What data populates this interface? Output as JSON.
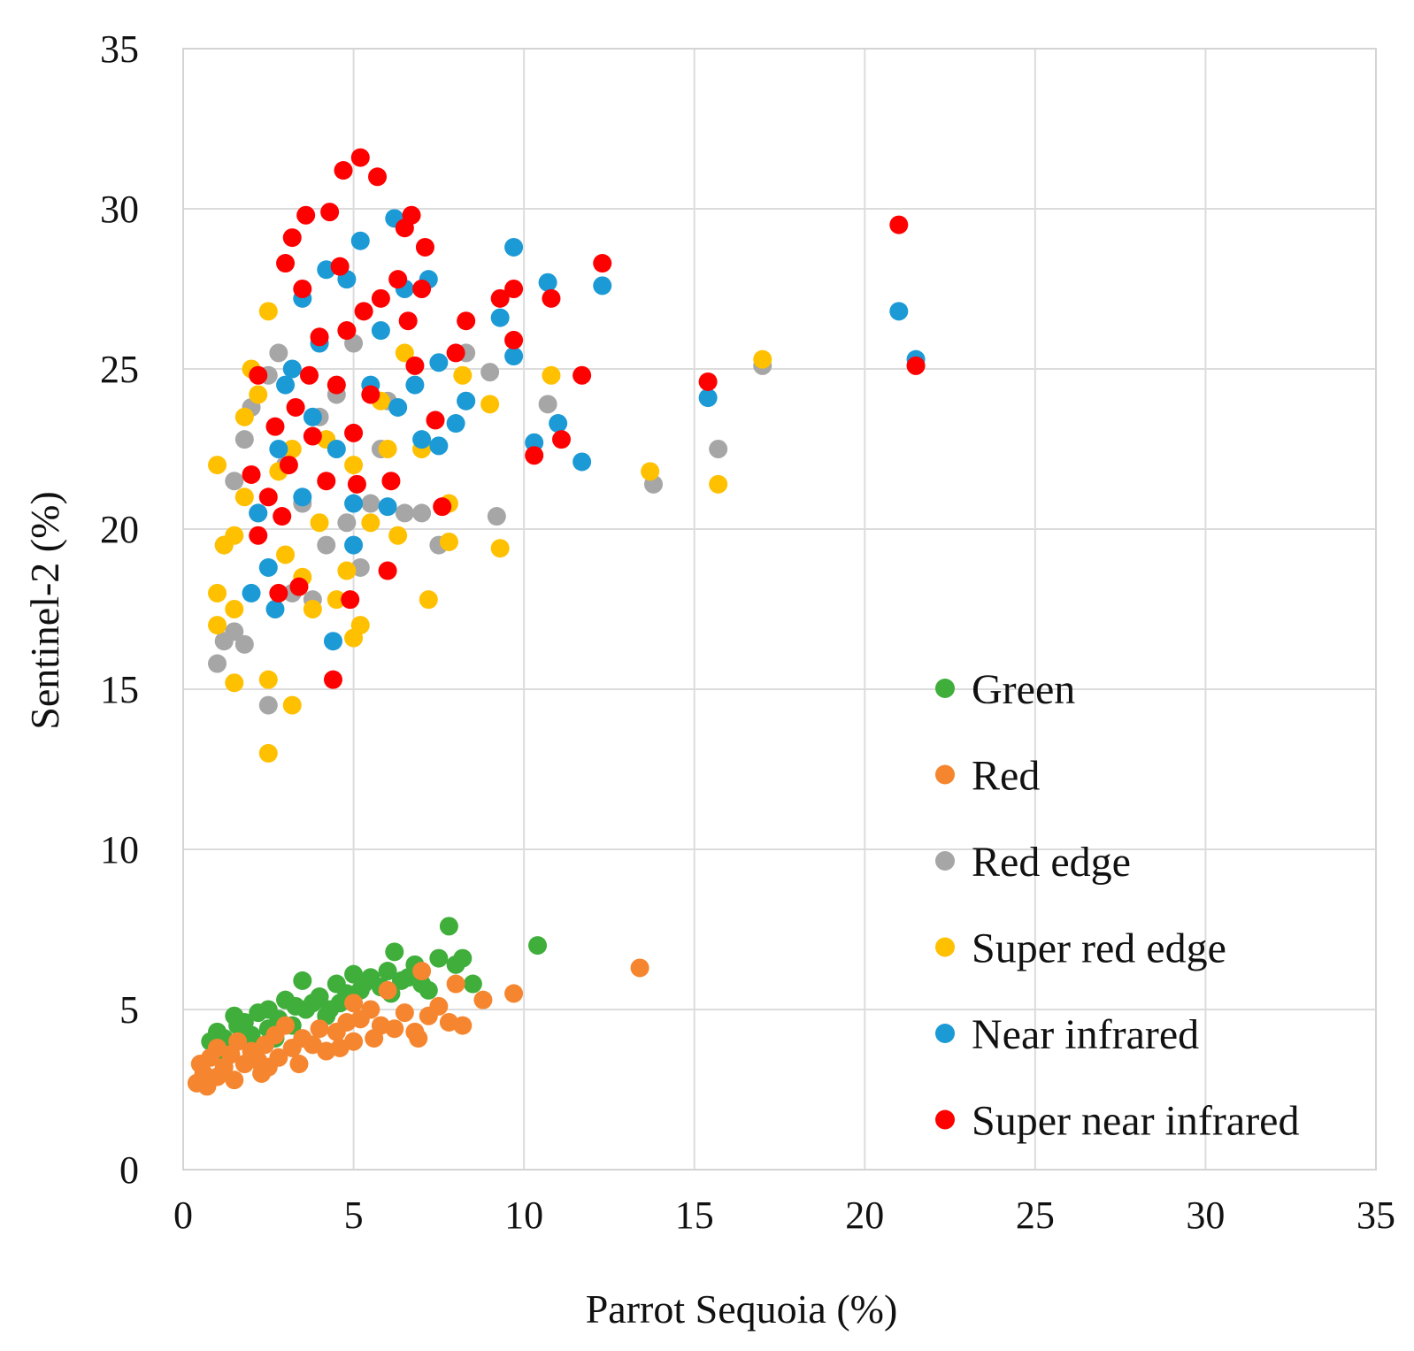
{
  "chart_data": {
    "type": "scatter",
    "title": "",
    "xlabel": "Parrot Sequoia (%)",
    "ylabel": "Sentinel-2 (%)",
    "xlim": [
      0,
      35
    ],
    "ylim": [
      0,
      35
    ],
    "xticks": [
      0,
      5,
      10,
      15,
      20,
      25,
      30,
      35
    ],
    "yticks": [
      0,
      5,
      10,
      15,
      20,
      25,
      30,
      35
    ],
    "grid": true,
    "legend_position": "lower-right",
    "series": [
      {
        "name": "Green",
        "color": "#3fae3a",
        "points": [
          [
            0.8,
            4.0
          ],
          [
            1.0,
            4.3
          ],
          [
            1.2,
            4.1
          ],
          [
            1.5,
            4.8
          ],
          [
            1.8,
            4.6
          ],
          [
            2.0,
            4.2
          ],
          [
            2.2,
            4.9
          ],
          [
            2.5,
            5.0
          ],
          [
            2.5,
            4.4
          ],
          [
            2.8,
            4.7
          ],
          [
            3.0,
            5.3
          ],
          [
            3.2,
            4.5
          ],
          [
            3.5,
            5.9
          ],
          [
            3.6,
            5.0
          ],
          [
            3.8,
            5.2
          ],
          [
            4.0,
            5.4
          ],
          [
            4.2,
            4.8
          ],
          [
            4.5,
            5.8
          ],
          [
            4.6,
            5.2
          ],
          [
            4.8,
            5.5
          ],
          [
            5.0,
            6.1
          ],
          [
            5.2,
            5.6
          ],
          [
            5.5,
            6.0
          ],
          [
            5.8,
            5.7
          ],
          [
            6.0,
            6.2
          ],
          [
            6.2,
            6.8
          ],
          [
            6.4,
            5.9
          ],
          [
            6.6,
            6.0
          ],
          [
            6.8,
            6.4
          ],
          [
            7.0,
            5.8
          ],
          [
            7.2,
            5.6
          ],
          [
            7.5,
            6.6
          ],
          [
            7.8,
            7.6
          ],
          [
            8.0,
            6.4
          ],
          [
            8.2,
            6.6
          ],
          [
            8.5,
            5.8
          ],
          [
            10.4,
            7.0
          ],
          [
            1.1,
            3.7
          ],
          [
            1.6,
            4.5
          ],
          [
            2.7,
            4.1
          ],
          [
            3.3,
            5.1
          ],
          [
            4.3,
            5.0
          ],
          [
            5.3,
            5.8
          ],
          [
            6.1,
            5.5
          ]
        ]
      },
      {
        "name": "Red",
        "color": "#f5862f",
        "points": [
          [
            0.4,
            2.7
          ],
          [
            0.5,
            3.3
          ],
          [
            0.6,
            3.0
          ],
          [
            0.7,
            2.6
          ],
          [
            0.8,
            3.5
          ],
          [
            1.0,
            2.9
          ],
          [
            1.0,
            3.8
          ],
          [
            1.2,
            3.2
          ],
          [
            1.4,
            3.6
          ],
          [
            1.5,
            2.8
          ],
          [
            1.6,
            4.0
          ],
          [
            1.8,
            3.3
          ],
          [
            2.0,
            3.7
          ],
          [
            2.2,
            3.4
          ],
          [
            2.4,
            3.9
          ],
          [
            2.5,
            3.2
          ],
          [
            2.7,
            4.2
          ],
          [
            2.8,
            3.5
          ],
          [
            3.0,
            4.5
          ],
          [
            3.2,
            3.8
          ],
          [
            3.5,
            4.1
          ],
          [
            3.8,
            3.9
          ],
          [
            4.0,
            4.4
          ],
          [
            4.2,
            3.7
          ],
          [
            4.5,
            4.3
          ],
          [
            4.8,
            4.6
          ],
          [
            5.0,
            4.0
          ],
          [
            5.0,
            5.2
          ],
          [
            5.2,
            4.7
          ],
          [
            5.5,
            5.0
          ],
          [
            5.8,
            4.5
          ],
          [
            6.0,
            5.6
          ],
          [
            6.2,
            4.4
          ],
          [
            6.5,
            4.9
          ],
          [
            6.8,
            4.3
          ],
          [
            7.0,
            6.2
          ],
          [
            7.2,
            4.8
          ],
          [
            7.5,
            5.1
          ],
          [
            7.8,
            4.6
          ],
          [
            8.0,
            5.8
          ],
          [
            8.2,
            4.5
          ],
          [
            8.8,
            5.3
          ],
          [
            9.7,
            5.5
          ],
          [
            13.4,
            6.3
          ],
          [
            2.3,
            3.0
          ],
          [
            3.4,
            3.3
          ],
          [
            4.6,
            3.8
          ],
          [
            5.6,
            4.1
          ],
          [
            6.9,
            4.1
          ]
        ]
      },
      {
        "name": "Red edge",
        "color": "#a6a6a6",
        "points": [
          [
            1.0,
            15.8
          ],
          [
            1.2,
            16.5
          ],
          [
            1.5,
            16.8
          ],
          [
            1.8,
            16.4
          ],
          [
            1.2,
            19.5
          ],
          [
            1.5,
            21.5
          ],
          [
            1.8,
            22.8
          ],
          [
            2.0,
            23.8
          ],
          [
            2.2,
            20.5
          ],
          [
            2.5,
            14.5
          ],
          [
            2.5,
            24.8
          ],
          [
            2.8,
            25.5
          ],
          [
            3.0,
            22.0
          ],
          [
            3.2,
            18.0
          ],
          [
            3.5,
            20.8
          ],
          [
            3.8,
            17.8
          ],
          [
            4.0,
            23.5
          ],
          [
            4.2,
            19.5
          ],
          [
            4.5,
            24.2
          ],
          [
            4.8,
            20.2
          ],
          [
            5.0,
            25.8
          ],
          [
            5.2,
            18.8
          ],
          [
            5.5,
            20.8
          ],
          [
            5.8,
            22.5
          ],
          [
            6.0,
            24.0
          ],
          [
            6.5,
            20.5
          ],
          [
            7.0,
            20.5
          ],
          [
            7.5,
            19.5
          ],
          [
            8.3,
            24.0
          ],
          [
            8.3,
            25.5
          ],
          [
            9.0,
            24.9
          ],
          [
            9.2,
            20.4
          ],
          [
            10.7,
            23.9
          ],
          [
            13.8,
            21.4
          ],
          [
            15.7,
            22.5
          ],
          [
            17.0,
            25.1
          ]
        ]
      },
      {
        "name": "Super red edge",
        "color": "#ffc000",
        "points": [
          [
            1.0,
            17.0
          ],
          [
            1.0,
            18.0
          ],
          [
            1.0,
            22.0
          ],
          [
            1.2,
            19.5
          ],
          [
            1.5,
            15.2
          ],
          [
            1.5,
            17.5
          ],
          [
            1.5,
            19.8
          ],
          [
            1.8,
            21.0
          ],
          [
            1.8,
            23.5
          ],
          [
            2.0,
            25.0
          ],
          [
            2.2,
            24.2
          ],
          [
            2.5,
            13.0
          ],
          [
            2.5,
            15.3
          ],
          [
            2.5,
            26.8
          ],
          [
            2.8,
            21.8
          ],
          [
            3.0,
            19.2
          ],
          [
            3.2,
            14.5
          ],
          [
            3.2,
            22.5
          ],
          [
            3.5,
            18.5
          ],
          [
            3.8,
            17.5
          ],
          [
            4.0,
            20.2
          ],
          [
            4.2,
            22.8
          ],
          [
            4.5,
            17.8
          ],
          [
            4.8,
            18.7
          ],
          [
            5.0,
            16.6
          ],
          [
            5.0,
            22.0
          ],
          [
            5.2,
            17.0
          ],
          [
            5.5,
            20.2
          ],
          [
            5.8,
            24.0
          ],
          [
            6.0,
            22.5
          ],
          [
            6.3,
            19.8
          ],
          [
            6.5,
            25.5
          ],
          [
            7.0,
            22.5
          ],
          [
            7.2,
            17.8
          ],
          [
            7.8,
            20.8
          ],
          [
            7.8,
            19.6
          ],
          [
            8.2,
            24.8
          ],
          [
            9.0,
            23.9
          ],
          [
            9.3,
            19.4
          ],
          [
            10.8,
            24.8
          ],
          [
            13.7,
            21.8
          ],
          [
            15.7,
            21.4
          ],
          [
            17.0,
            25.3
          ]
        ]
      },
      {
        "name": "Near infrared",
        "color": "#1b9ad6",
        "points": [
          [
            2.0,
            18.0
          ],
          [
            2.2,
            20.5
          ],
          [
            2.5,
            18.8
          ],
          [
            2.7,
            17.5
          ],
          [
            2.8,
            22.5
          ],
          [
            3.0,
            24.5
          ],
          [
            3.2,
            25.0
          ],
          [
            3.5,
            21.0
          ],
          [
            3.5,
            27.2
          ],
          [
            3.8,
            23.5
          ],
          [
            4.0,
            25.8
          ],
          [
            4.2,
            28.1
          ],
          [
            4.4,
            16.5
          ],
          [
            4.5,
            22.5
          ],
          [
            4.8,
            27.8
          ],
          [
            5.0,
            19.5
          ],
          [
            5.0,
            20.8
          ],
          [
            5.2,
            29.0
          ],
          [
            5.5,
            24.5
          ],
          [
            5.8,
            26.2
          ],
          [
            6.0,
            20.7
          ],
          [
            6.2,
            29.7
          ],
          [
            6.3,
            23.8
          ],
          [
            6.5,
            27.5
          ],
          [
            6.8,
            24.5
          ],
          [
            7.0,
            22.8
          ],
          [
            7.2,
            27.8
          ],
          [
            7.5,
            25.2
          ],
          [
            7.5,
            22.6
          ],
          [
            8.0,
            23.3
          ],
          [
            8.3,
            24.0
          ],
          [
            9.3,
            26.6
          ],
          [
            9.7,
            28.8
          ],
          [
            9.7,
            25.4
          ],
          [
            10.3,
            22.7
          ],
          [
            10.7,
            27.7
          ],
          [
            11.0,
            23.3
          ],
          [
            11.7,
            22.1
          ],
          [
            12.3,
            27.6
          ],
          [
            15.4,
            24.1
          ],
          [
            21.0,
            26.8
          ],
          [
            21.5,
            25.3
          ]
        ]
      },
      {
        "name": "Super near infrared",
        "color": "#ff0000",
        "points": [
          [
            2.0,
            21.7
          ],
          [
            2.2,
            24.8
          ],
          [
            2.2,
            19.8
          ],
          [
            2.5,
            21.0
          ],
          [
            2.7,
            23.2
          ],
          [
            2.8,
            18.0
          ],
          [
            2.9,
            20.4
          ],
          [
            3.0,
            28.3
          ],
          [
            3.1,
            22.0
          ],
          [
            3.2,
            29.1
          ],
          [
            3.3,
            23.8
          ],
          [
            3.4,
            18.2
          ],
          [
            3.5,
            27.5
          ],
          [
            3.6,
            29.8
          ],
          [
            3.7,
            24.8
          ],
          [
            3.8,
            22.9
          ],
          [
            4.0,
            26.0
          ],
          [
            4.2,
            21.5
          ],
          [
            4.3,
            29.9
          ],
          [
            4.4,
            15.3
          ],
          [
            4.5,
            24.5
          ],
          [
            4.6,
            28.2
          ],
          [
            4.7,
            31.2
          ],
          [
            4.8,
            26.2
          ],
          [
            4.9,
            17.8
          ],
          [
            5.0,
            23.0
          ],
          [
            5.1,
            21.4
          ],
          [
            5.2,
            31.6
          ],
          [
            5.3,
            26.8
          ],
          [
            5.5,
            24.2
          ],
          [
            5.7,
            31.0
          ],
          [
            5.8,
            27.2
          ],
          [
            6.0,
            18.7
          ],
          [
            6.1,
            21.5
          ],
          [
            6.3,
            27.8
          ],
          [
            6.5,
            29.4
          ],
          [
            6.6,
            26.5
          ],
          [
            6.7,
            29.8
          ],
          [
            6.8,
            25.1
          ],
          [
            7.0,
            27.5
          ],
          [
            7.1,
            28.8
          ],
          [
            7.4,
            23.4
          ],
          [
            7.6,
            20.7
          ],
          [
            8.0,
            25.5
          ],
          [
            8.3,
            26.5
          ],
          [
            9.3,
            27.2
          ],
          [
            9.7,
            27.5
          ],
          [
            9.7,
            25.9
          ],
          [
            10.3,
            22.3
          ],
          [
            10.8,
            27.2
          ],
          [
            11.1,
            22.8
          ],
          [
            11.7,
            24.8
          ],
          [
            12.3,
            28.3
          ],
          [
            15.4,
            24.6
          ],
          [
            21.0,
            29.5
          ],
          [
            21.5,
            25.1
          ]
        ]
      }
    ]
  }
}
